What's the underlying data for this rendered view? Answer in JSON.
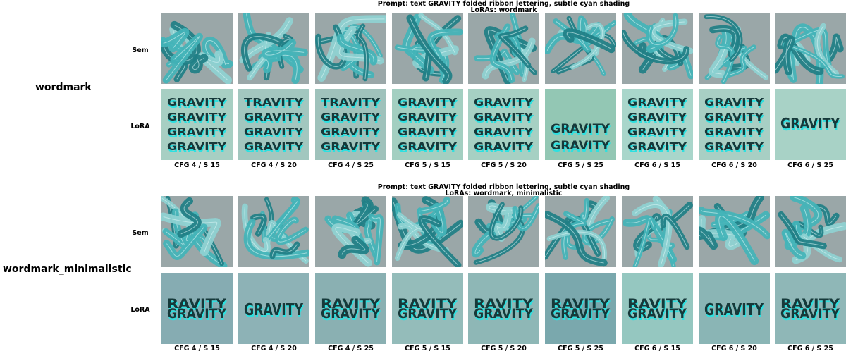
{
  "sections": [
    {
      "prompt_line1": "Prompt: text GRAVITY folded ribbon lettering, subtle cyan shading",
      "prompt_line2": "LoRAs: wordmark",
      "lora_name": "wordmark",
      "row_labels": [
        "Sem",
        "LoRA"
      ],
      "lora_tiles": [
        {
          "lines": [
            "GRAVITY",
            "GRAVITY",
            "GRAVITY",
            "GRAVITY"
          ],
          "bg": "#a7cfc3"
        },
        {
          "lines": [
            "TRAVITY",
            "GRAVITY",
            "GRAVITY",
            "GRAVITY"
          ],
          "bg": "#a2c7bf"
        },
        {
          "lines": [
            "TRAVITY",
            "GRAVITY",
            "GRAVITY",
            "GRAVITY"
          ],
          "bg": "#9fc2bb"
        },
        {
          "lines": [
            "GRAVITY",
            "GRAVITY",
            "GRAVITY",
            "GRAVITY"
          ],
          "bg": "#a3cfc1"
        },
        {
          "lines": [
            "GRAVITY",
            "GRAVITY",
            "GRAVITY",
            "GRAVITY"
          ],
          "bg": "#a6d0c3"
        },
        {
          "lines": [
            "GRAVITY",
            "GRAVITY"
          ],
          "bg": "#93c7b4"
        },
        {
          "lines": [
            "GRAVITY",
            "GRAVITY",
            "GRAVITY",
            "GRAVITY"
          ],
          "bg": "#a9d6cb"
        },
        {
          "lines": [
            "GRAVITY",
            "GRAVITY",
            "GRAVITY",
            "GRAVITY"
          ],
          "bg": "#a8cfc4"
        },
        {
          "lines": [
            "GRAVITY"
          ],
          "bg": "#a8d2c6"
        }
      ],
      "captions": [
        "CFG 4 / S 15",
        "CFG 4 / S 20",
        "CFG 4 / S 25",
        "CFG 5 / S 15",
        "CFG 5 / S 20",
        "CFG 5 / S 25",
        "CFG 6 / S 15",
        "CFG 6 / S 20",
        "CFG 6 / S 25"
      ]
    },
    {
      "prompt_line1": "Prompt: text GRAVITY folded ribbon lettering, subtle cyan shading",
      "prompt_line2": "LoRAs: wordmark, minimalistic",
      "lora_name": "wordmark_minimalistic",
      "row_labels": [
        "Sem",
        "LoRA"
      ],
      "lora_tiles": [
        {
          "lines": [
            "RAVITY",
            "GRAVITY"
          ],
          "bg": "#86acb2"
        },
        {
          "lines": [
            "GRAVITY"
          ],
          "bg": "#8db2b6"
        },
        {
          "lines": [
            "RAVITY",
            "GRAVITY"
          ],
          "bg": "#8ab0b2"
        },
        {
          "lines": [
            "RAVITY",
            "GRAVITY"
          ],
          "bg": "#94bcba"
        },
        {
          "lines": [
            "RAVITY",
            "GRAVITY"
          ],
          "bg": "#8eb7b6"
        },
        {
          "lines": [
            "RAVITY",
            "GRAVITY"
          ],
          "bg": "#7aa8ad"
        },
        {
          "lines": [
            "RAVITY",
            "GRAVITY"
          ],
          "bg": "#95c7c0"
        },
        {
          "lines": [
            "GRAVITY"
          ],
          "bg": "#8ab5b5"
        },
        {
          "lines": [
            "RAVITY",
            "GRAVITY"
          ],
          "bg": "#8fb7b7"
        }
      ],
      "captions": [
        "CFG 4 / S 15",
        "CFG 4 / S 20",
        "CFG 4 / S 25",
        "CFG 5 / S 15",
        "CFG 5 / S 20",
        "CFG 5 / S 25",
        "CFG 6 / S 15",
        "CFG 6 / S 20",
        "CFG 6 / S 25"
      ]
    }
  ],
  "colors": {
    "ribbon_light": "#8fd3d3",
    "ribbon_mid": "#43b4b8",
    "ribbon_dark": "#1f7f86",
    "sem_bg": "#9aa7a8",
    "text_cyan": "#2de0e0",
    "text_dark": "#16393a"
  }
}
